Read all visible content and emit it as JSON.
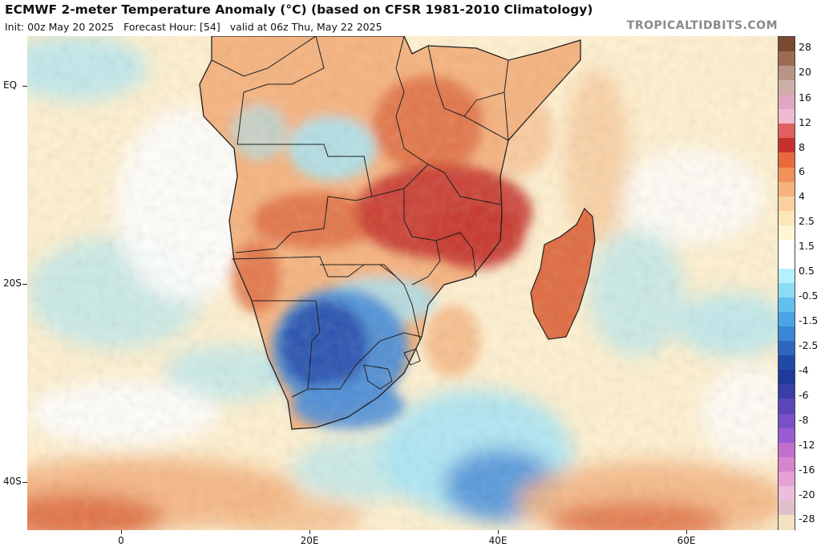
{
  "header": {
    "title": "ECMWF 2-meter Temperature Anomaly (°C) (based on CFSR 1981-2010 Climatology)",
    "init": "Init: 00z May 20 2025",
    "forecast_hour": "Forecast Hour: [54]",
    "valid": "valid at 06z Thu, May 22 2025",
    "brand": "TROPICALTIDBITS.COM"
  },
  "axes": {
    "lat_labels": [
      "EQ",
      "20S",
      "40S"
    ],
    "lon_labels": [
      "0",
      "20E",
      "40E",
      "60E"
    ]
  },
  "colorbar": {
    "labels": [
      "28",
      "20",
      "16",
      "12",
      "8",
      "6",
      "4",
      "2.5",
      "1.5",
      "0.5",
      "-0.5",
      "-1.5",
      "-2.5",
      "-4",
      "-6",
      "-8",
      "-12",
      "-16",
      "-20",
      "-28"
    ],
    "colors": [
      "#7a4a2e",
      "#9c6b52",
      "#b79585",
      "#ccafa6",
      "#e2a6c2",
      "#eebad2",
      "#e06060",
      "#c83030",
      "#e86a3c",
      "#f0925a",
      "#f6b37e",
      "#fad19e",
      "#fde6b8",
      "#fff6d6",
      "#ffffff",
      "#ffffff",
      "#b6f0ff",
      "#8adcf5",
      "#62c0ee",
      "#4aa4e6",
      "#3c86d6",
      "#2e66bf",
      "#1f4aa8",
      "#1f3a98",
      "#3a3ea6",
      "#5a46b8",
      "#7a50c8",
      "#9a5cd2",
      "#c070cc",
      "#d884cc",
      "#e6a2d4",
      "#eebcdc",
      "#dfc0c8",
      "#f2e2c2"
    ]
  },
  "map": {
    "palette": {
      "ocean_base": "#fff1cf",
      "warm": "#f6b37e",
      "warm_strong": "#e06b3f",
      "hot": "#c8352b",
      "cool": "#a8e6f6",
      "cold": "#4a8ed8",
      "very_cold": "#2a4fae",
      "land_border": "#111111"
    }
  }
}
